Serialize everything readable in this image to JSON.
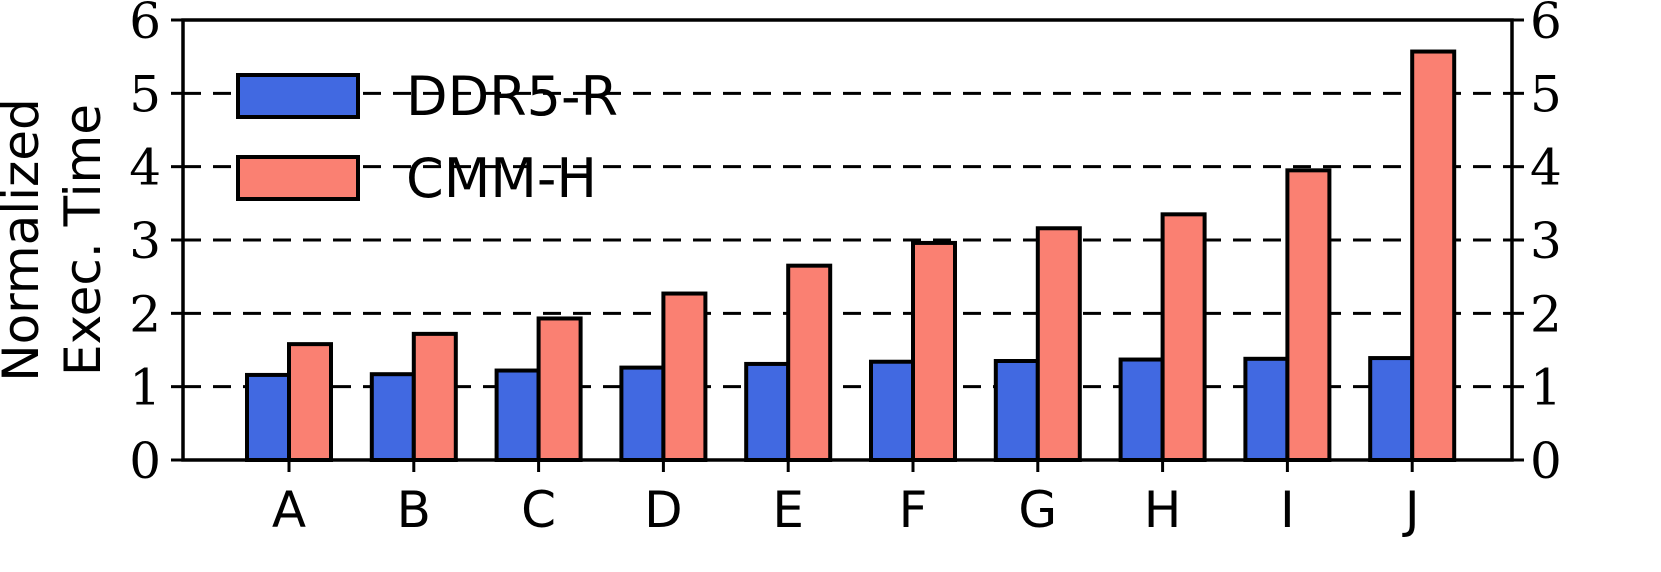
{
  "chart_data": {
    "type": "bar",
    "categories": [
      "A",
      "B",
      "C",
      "D",
      "E",
      "F",
      "G",
      "H",
      "I",
      "J"
    ],
    "series": [
      {
        "name": "DDR5-R",
        "color": "#4169E1",
        "values": [
          1.16,
          1.17,
          1.22,
          1.26,
          1.31,
          1.34,
          1.35,
          1.37,
          1.38,
          1.39
        ]
      },
      {
        "name": "CMM-H",
        "color": "#FA8072",
        "values": [
          1.58,
          1.72,
          1.93,
          2.27,
          2.65,
          2.96,
          3.16,
          3.35,
          3.95,
          5.57
        ]
      }
    ],
    "ylabel_lines": [
      "Normalized",
      "Exec.  Time"
    ],
    "ylim": [
      0,
      6
    ],
    "yticks": [
      "0",
      "1",
      "2",
      "3",
      "4",
      "5",
      "6"
    ],
    "grid": "horizontal dashed",
    "legend_position": "top-left",
    "right_ticks": true
  }
}
